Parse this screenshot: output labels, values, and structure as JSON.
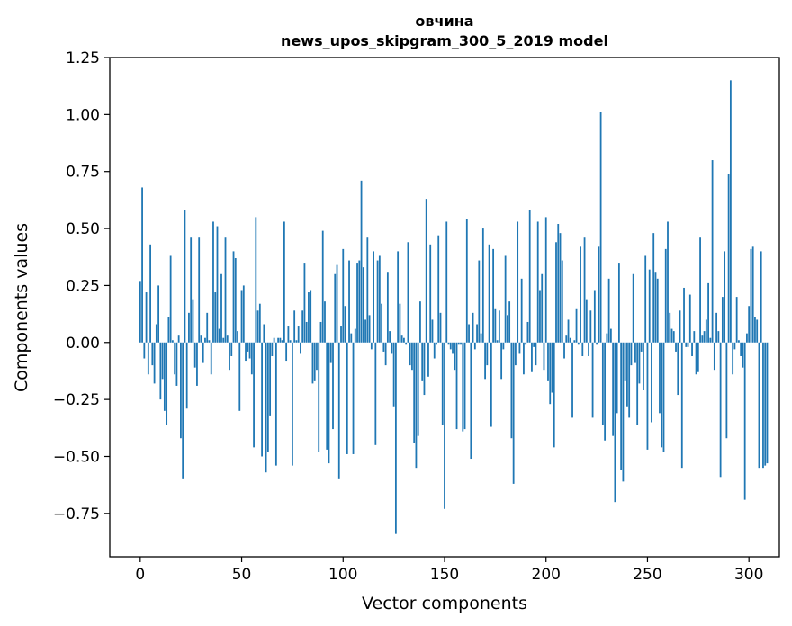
{
  "chart_data": {
    "type": "bar",
    "title": "овчина",
    "subtitle": "news_upos_skipgram_300_5_2019 model",
    "xlabel": "Vector components",
    "ylabel": "Components values",
    "xlim": [
      -15,
      315
    ],
    "ylim": [
      -0.94,
      1.25
    ],
    "xticks": [
      0,
      50,
      100,
      150,
      200,
      250,
      300
    ],
    "xtick_labels": [
      "0",
      "50",
      "100",
      "150",
      "200",
      "250",
      "300"
    ],
    "yticks": [
      1.25,
      1.0,
      0.75,
      0.5,
      0.25,
      0.0,
      -0.25,
      -0.5,
      -0.75
    ],
    "ytick_labels": [
      "1.25",
      "1.00",
      "0.75",
      "0.50",
      "0.25",
      "0.00",
      "−0.25",
      "−0.50",
      "−0.75"
    ],
    "bar_color": "#1f77b4",
    "grid": false,
    "values": [
      0.27,
      0.68,
      -0.07,
      0.22,
      -0.14,
      0.43,
      -0.1,
      -0.18,
      0.08,
      0.25,
      -0.25,
      -0.16,
      -0.3,
      -0.36,
      0.11,
      0.38,
      0.01,
      -0.14,
      -0.19,
      0.03,
      -0.42,
      -0.6,
      0.58,
      -0.29,
      0.13,
      0.46,
      0.19,
      -0.11,
      -0.19,
      0.46,
      0.03,
      -0.09,
      0.02,
      0.13,
      0.01,
      -0.14,
      0.53,
      0.22,
      0.51,
      0.06,
      0.3,
      0.02,
      0.46,
      0.03,
      -0.12,
      -0.06,
      0.4,
      0.37,
      0.05,
      -0.3,
      0.23,
      0.25,
      -0.08,
      -0.04,
      -0.07,
      -0.14,
      -0.46,
      0.55,
      0.14,
      0.17,
      -0.5,
      0.08,
      -0.57,
      -0.48,
      -0.32,
      -0.06,
      0.02,
      -0.54,
      0.02,
      0.02,
      0.01,
      0.53,
      -0.08,
      0.07,
      0.01,
      -0.54,
      0.14,
      0.01,
      0.07,
      -0.05,
      0.14,
      0.35,
      0.09,
      0.22,
      0.23,
      -0.18,
      -0.17,
      -0.12,
      -0.48,
      0.09,
      0.49,
      0.18,
      -0.47,
      -0.53,
      -0.09,
      -0.38,
      0.3,
      0.34,
      -0.6,
      0.07,
      0.41,
      0.16,
      -0.49,
      0.36,
      0.04,
      -0.49,
      0.06,
      0.35,
      0.36,
      0.71,
      0.33,
      0.1,
      0.46,
      0.12,
      -0.03,
      0.4,
      -0.45,
      0.36,
      0.38,
      0.17,
      -0.04,
      -0.1,
      0.31,
      0.05,
      -0.05,
      -0.28,
      -0.84,
      0.4,
      0.17,
      0.03,
      0.02,
      -0.01,
      0.44,
      -0.1,
      -0.12,
      -0.44,
      -0.55,
      -0.41,
      0.18,
      -0.17,
      -0.23,
      0.63,
      -0.15,
      0.43,
      0.1,
      -0.07,
      -0.01,
      0.47,
      0.13,
      -0.36,
      -0.73,
      0.53,
      -0.01,
      -0.03,
      -0.05,
      -0.12,
      -0.38,
      -0.01,
      -0.01,
      -0.39,
      -0.38,
      0.54,
      0.08,
      -0.51,
      0.13,
      -0.03,
      0.08,
      0.36,
      0.04,
      0.5,
      -0.16,
      -0.1,
      0.43,
      -0.37,
      0.41,
      0.15,
      0.01,
      0.14,
      -0.16,
      -0.03,
      0.38,
      0.12,
      0.18,
      -0.42,
      -0.62,
      -0.1,
      0.53,
      -0.05,
      0.28,
      -0.14,
      -0.01,
      0.09,
      0.58,
      -0.13,
      -0.02,
      -0.1,
      0.53,
      0.23,
      0.3,
      -0.12,
      0.55,
      -0.17,
      -0.27,
      -0.22,
      -0.46,
      0.44,
      0.52,
      0.48,
      0.36,
      -0.07,
      0.03,
      0.1,
      0.02,
      -0.33,
      0.01,
      0.15,
      -0.01,
      0.42,
      -0.06,
      0.46,
      0.19,
      -0.06,
      0.14,
      -0.33,
      0.23,
      -0.01,
      0.42,
      1.01,
      -0.36,
      -0.43,
      0.04,
      0.28,
      0.06,
      -0.41,
      -0.7,
      -0.31,
      0.35,
      -0.56,
      -0.61,
      -0.17,
      -0.28,
      -0.33,
      -0.1,
      0.3,
      -0.09,
      -0.36,
      -0.18,
      -0.04,
      -0.21,
      0.38,
      -0.47,
      0.32,
      -0.35,
      0.48,
      0.31,
      0.28,
      -0.31,
      -0.46,
      -0.48,
      0.41,
      0.53,
      0.13,
      0.06,
      0.05,
      -0.04,
      -0.23,
      0.14,
      -0.55,
      0.24,
      -0.02,
      -0.02,
      0.21,
      -0.06,
      0.05,
      -0.14,
      -0.13,
      0.46,
      0.03,
      0.05,
      0.1,
      0.26,
      0.02,
      0.8,
      -0.12,
      0.13,
      0.05,
      -0.59,
      0.2,
      0.4,
      -0.42,
      0.74,
      1.15,
      -0.14,
      -0.03,
      0.2,
      0.01,
      -0.06,
      -0.11,
      -0.69,
      0.04,
      0.16,
      0.41,
      0.42,
      0.11,
      0.1,
      -0.55,
      0.4,
      -0.55,
      -0.54,
      -0.53
    ]
  }
}
